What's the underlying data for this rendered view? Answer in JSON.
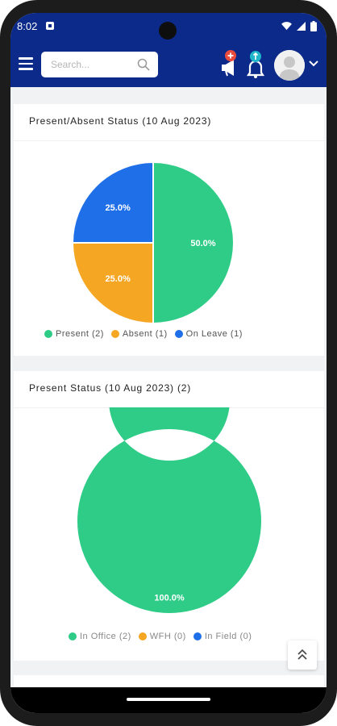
{
  "status_bar": {
    "time": "8:02"
  },
  "header": {
    "search_placeholder": "Search..."
  },
  "colors": {
    "primary": "#0b2a8a",
    "present": "#2ecc87",
    "absent": "#f5a623",
    "on_leave": "#1f6fe8",
    "notif_red": "#e94b3c",
    "notif_teal": "#20b5c9"
  },
  "card1": {
    "title": "Present/Absent Status (10 Aug 2023)",
    "legend": [
      "Present (2)",
      "Absent (1)",
      "On Leave (1)"
    ]
  },
  "card2": {
    "title": "Present Status (10 Aug 2023) (2)",
    "legend": [
      "In Office (2)",
      "WFH (0)",
      "In Field (0)"
    ]
  },
  "chart_data": [
    {
      "type": "pie",
      "categories": [
        "Present",
        "Absent",
        "On Leave"
      ],
      "values": [
        50.0,
        25.0,
        25.0
      ],
      "labels": [
        "50.0%",
        "25.0%",
        "25.0%"
      ],
      "legend_position": "bottom"
    },
    {
      "type": "pie",
      "categories": [
        "In Office",
        "WFH",
        "In Field"
      ],
      "values": [
        100.0,
        0,
        0
      ],
      "labels": [
        "100.0%"
      ],
      "legend_position": "bottom"
    }
  ]
}
